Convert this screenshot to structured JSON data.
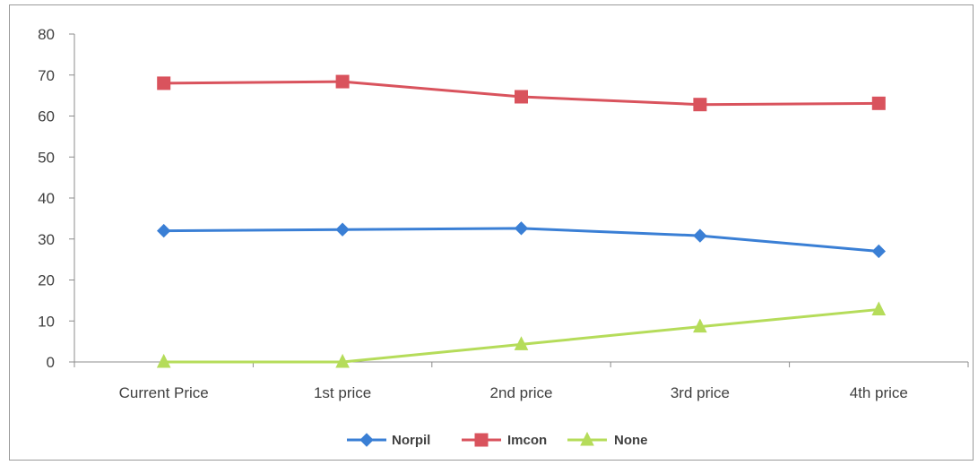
{
  "chart_data": {
    "type": "line",
    "categories": [
      "Current Price",
      "1st price",
      "2nd price",
      "3rd price",
      "4th price"
    ],
    "series": [
      {
        "name": "Norpil",
        "values": [
          32,
          32.3,
          32.6,
          30.8,
          27
        ],
        "color": "#3a7fd5",
        "marker": "diamond"
      },
      {
        "name": "Imcon",
        "values": [
          68,
          68.4,
          64.7,
          62.8,
          63.1
        ],
        "color": "#d9535d",
        "marker": "square"
      },
      {
        "name": "None",
        "values": [
          0,
          0,
          4.3,
          8.6,
          12.8
        ],
        "color": "#b5dc5a",
        "marker": "triangle"
      }
    ],
    "ylim": [
      0,
      80
    ],
    "yticks": [
      0,
      10,
      20,
      30,
      40,
      50,
      60,
      70,
      80
    ],
    "title": "",
    "xlabel": "",
    "ylabel": "",
    "grid": false,
    "legend": "bottom"
  }
}
